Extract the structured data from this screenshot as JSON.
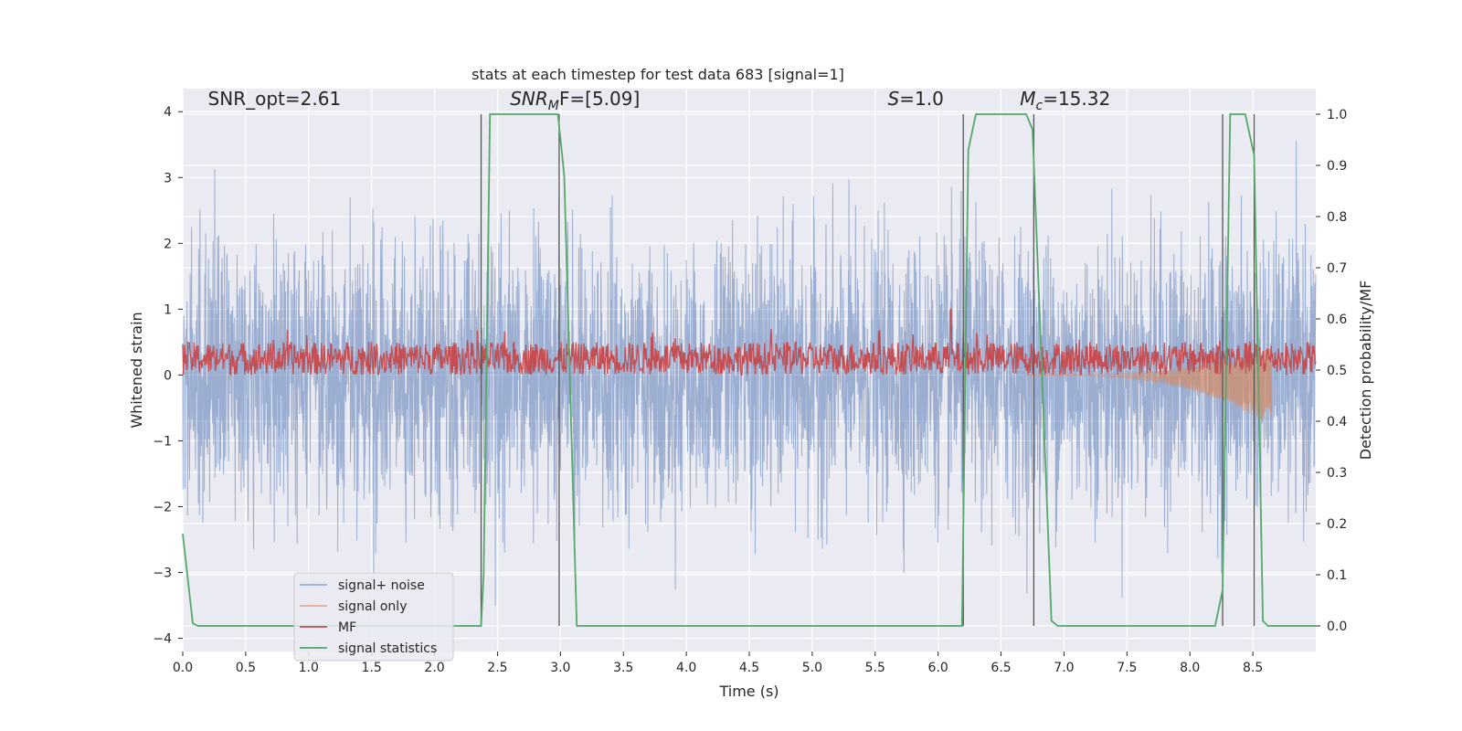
{
  "chart_data": {
    "type": "line",
    "title": "stats at each timestep for test data 683 [signal=1]",
    "xlabel": "Time (s)",
    "ylabel_left": "Whitened strain",
    "ylabel_right": "Detection probability/MF",
    "xlim": [
      0.0,
      9.0
    ],
    "ylim_left": [
      -4.2,
      4.35
    ],
    "ylim_right": [
      -0.05,
      1.05
    ],
    "x_ticks": [
      "0.0",
      "0.5",
      "1.0",
      "1.5",
      "2.0",
      "2.5",
      "3.0",
      "3.5",
      "4.0",
      "4.5",
      "5.0",
      "5.5",
      "6.0",
      "6.5",
      "7.0",
      "7.5",
      "8.0",
      "8.5"
    ],
    "y_ticks_left": [
      "−4",
      "−3",
      "−2",
      "−1",
      "0",
      "1",
      "2",
      "3",
      "4"
    ],
    "y_ticks_right": [
      "0.0",
      "0.1",
      "0.2",
      "0.3",
      "0.4",
      "0.5",
      "0.6",
      "0.7",
      "0.8",
      "0.9",
      "1.0"
    ],
    "grid": true,
    "legend_position": "lower-left",
    "annotations": [
      {
        "label": "SNR_opt=2.61",
        "x": 0.2,
        "y": 4.1
      },
      {
        "label": "SNR",
        "sub": "M",
        "rest": "F=[5.09]",
        "x": 2.6,
        "y": 4.1
      },
      {
        "label": "S",
        "rest": "=1.0",
        "x": 5.6,
        "y": 4.1
      },
      {
        "label": "M",
        "sub": "c",
        "rest": "=15.32",
        "x": 6.65,
        "y": 4.1
      }
    ],
    "series": [
      {
        "name": "signal+ noise",
        "color": "#4c72b0",
        "kind": "noise",
        "amplitude_typical": 1.0,
        "amplitude_peak": 3.8
      },
      {
        "name": "signal only",
        "color": "#dd8452",
        "kind": "chirp",
        "x_start": 6.7,
        "x_end": 8.65,
        "y_min": -0.6
      },
      {
        "name": "MF",
        "color": "#c44e52",
        "kind": "mf",
        "baseline": 0.25,
        "spread": 0.5,
        "x_end": 9.0
      },
      {
        "name": "signal statistics",
        "color": "#55a868",
        "axis": "right",
        "x": [
          0.0,
          0.08,
          0.12,
          2.37,
          2.39,
          2.44,
          2.98,
          3.03,
          3.13,
          6.19,
          6.24,
          6.3,
          6.7,
          6.75,
          6.9,
          6.95,
          8.2,
          8.26,
          8.32,
          8.44,
          8.51,
          8.58,
          8.62,
          9.0
        ],
        "y": [
          0.18,
          0.005,
          0.0,
          0.0,
          0.1,
          1.0,
          1.0,
          0.88,
          0.0,
          0.0,
          0.93,
          1.0,
          1.0,
          0.97,
          0.01,
          0.0,
          0.0,
          0.07,
          1.0,
          1.0,
          0.92,
          0.01,
          0.0,
          0.0
        ]
      }
    ],
    "vertical_lines": [
      2.37,
      2.99,
      6.2,
      6.76,
      8.26,
      8.51
    ]
  }
}
